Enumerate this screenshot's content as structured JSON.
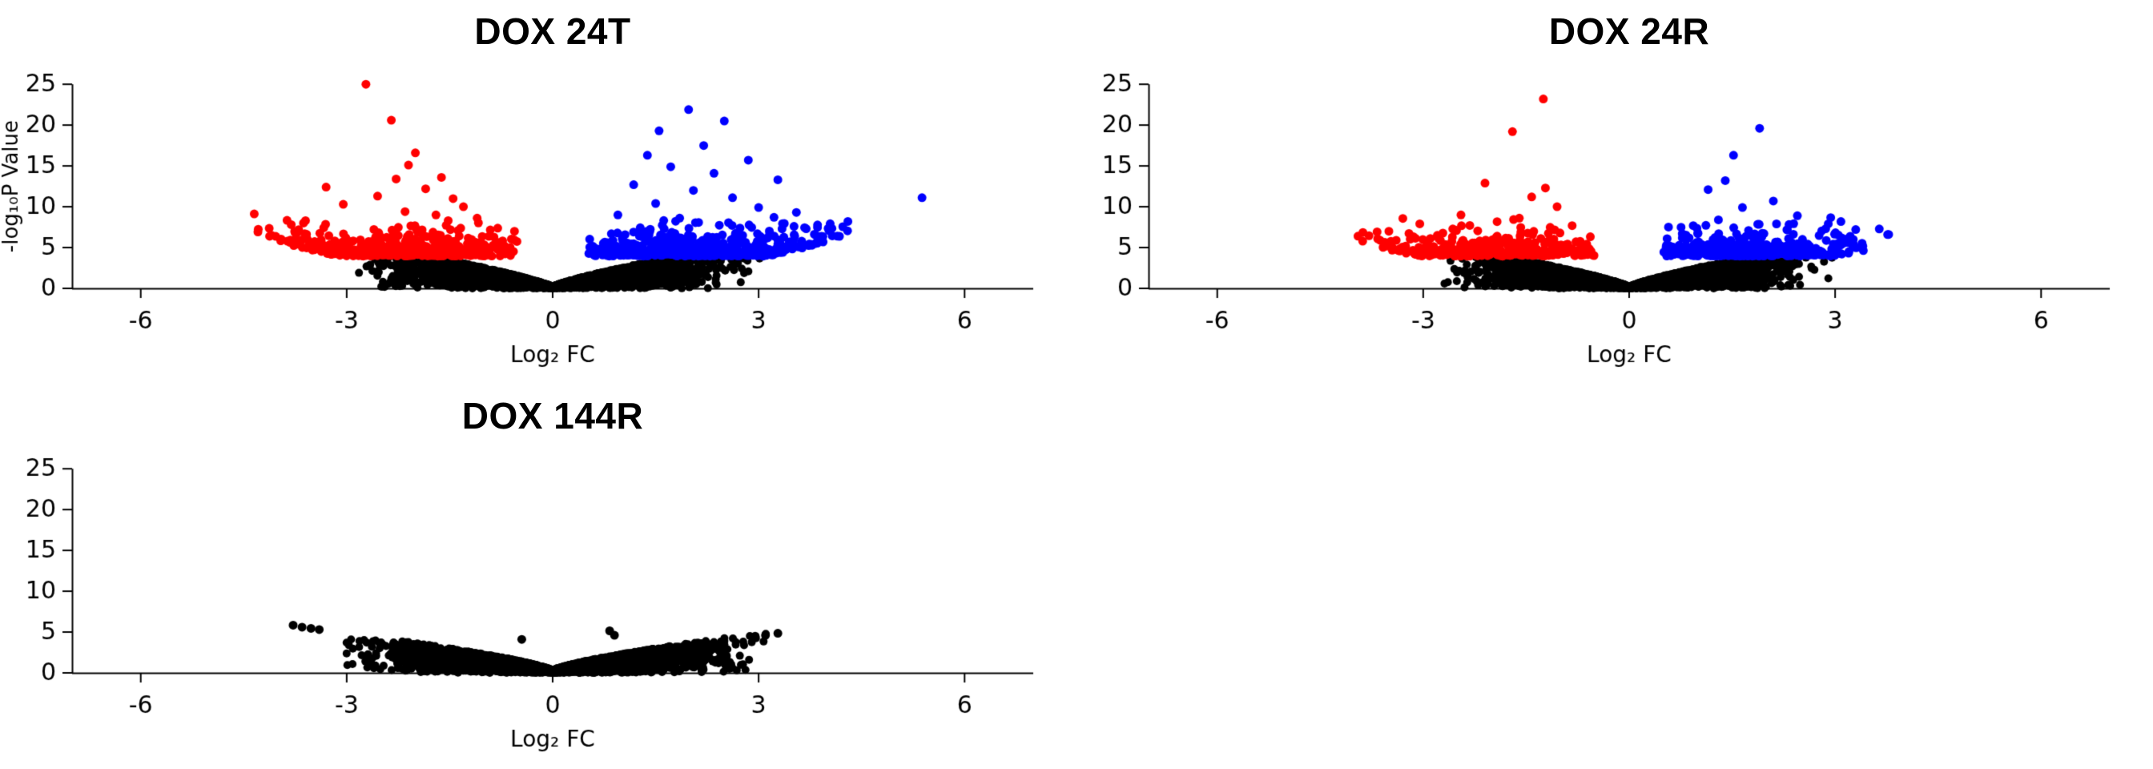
{
  "page": {
    "background": "#FFFFFF"
  },
  "chart_data": [
    {
      "type": "scatter",
      "subtype": "volcano",
      "title": "DOX 24T",
      "xlabel": "Log₂ FC",
      "ylabel": "-log₁₀P Value",
      "show_ylabel": true,
      "xlim": [
        -7,
        7
      ],
      "ylim": [
        0,
        26
      ],
      "xticks": [
        -6,
        -3,
        0,
        3,
        6
      ],
      "yticks": [
        0,
        5,
        10,
        15,
        20,
        25
      ],
      "grid": false,
      "legend": "none",
      "significance_threshold_y": 3.9,
      "seed": 101,
      "series": [
        {
          "name": "non-significant",
          "color": "#000000",
          "n": 4200,
          "x_spread": 1.7,
          "x_clip": 3.35,
          "envelope": {
            "base": 0.18,
            "coef": 2.35,
            "pow": 0.8,
            "cap": 3.85
          },
          "outliers": []
        },
        {
          "name": "down-regulated-significant",
          "color": "#FF0000",
          "side": -1,
          "n": 520,
          "x_min": 0.5,
          "x_scale": 3.95,
          "x_pow": 1.35,
          "x_clip": 4.65,
          "floor": {
            "base": 3.95,
            "coef": 2.0,
            "knee": 3.05,
            "pow": 1.4
          },
          "y_exp": 1.0,
          "outliers": [
            [
              -2.72,
              25.0
            ],
            [
              -2.35,
              20.6
            ],
            [
              -2.0,
              16.6
            ],
            [
              -2.1,
              15.1
            ],
            [
              -1.62,
              13.6
            ],
            [
              -2.28,
              13.4
            ],
            [
              -3.3,
              12.4
            ],
            [
              -1.85,
              12.2
            ],
            [
              -2.55,
              11.3
            ],
            [
              -1.45,
              11.0
            ],
            [
              -3.05,
              10.3
            ],
            [
              -1.3,
              10.0
            ],
            [
              -2.15,
              9.4
            ],
            [
              -1.7,
              9.0
            ],
            [
              -3.6,
              8.3
            ],
            [
              -1.1,
              8.6
            ]
          ]
        },
        {
          "name": "up-regulated-significant",
          "color": "#0000FF",
          "side": 1,
          "n": 620,
          "x_min": 0.5,
          "x_scale": 3.95,
          "x_pow": 1.35,
          "x_clip": 4.45,
          "floor": {
            "base": 3.95,
            "coef": 2.0,
            "knee": 3.05,
            "pow": 1.4
          },
          "y_exp": 1.0,
          "outliers": [
            [
              1.98,
              21.9
            ],
            [
              2.5,
              20.5
            ],
            [
              1.55,
              19.3
            ],
            [
              2.2,
              17.5
            ],
            [
              1.38,
              16.3
            ],
            [
              2.85,
              15.7
            ],
            [
              1.72,
              14.9
            ],
            [
              2.35,
              14.1
            ],
            [
              3.28,
              13.3
            ],
            [
              1.18,
              12.7
            ],
            [
              2.05,
              12.0
            ],
            [
              2.62,
              11.1
            ],
            [
              5.38,
              11.1
            ],
            [
              1.5,
              10.4
            ],
            [
              3.0,
              9.9
            ],
            [
              3.55,
              9.3
            ],
            [
              4.3,
              8.2
            ],
            [
              0.95,
              9.0
            ],
            [
              1.85,
              8.6
            ]
          ]
        }
      ]
    },
    {
      "type": "scatter",
      "subtype": "volcano",
      "title": "DOX 24R",
      "xlabel": "Log₂ FC",
      "ylabel": "-log₁₀P Value",
      "show_ylabel": false,
      "xlim": [
        -7,
        7
      ],
      "ylim": [
        0,
        26
      ],
      "xticks": [
        -6,
        -3,
        0,
        3,
        6
      ],
      "yticks": [
        0,
        5,
        10,
        15,
        20,
        25
      ],
      "grid": false,
      "legend": "none",
      "significance_threshold_y": 3.9,
      "seed": 202,
      "series": [
        {
          "name": "non-significant",
          "color": "#000000",
          "n": 4200,
          "x_spread": 1.65,
          "x_clip": 3.3,
          "envelope": {
            "base": 0.18,
            "coef": 2.35,
            "pow": 0.8,
            "cap": 3.85
          },
          "outliers": []
        },
        {
          "name": "down-regulated-significant",
          "color": "#FF0000",
          "side": -1,
          "n": 330,
          "x_min": 0.45,
          "x_scale": 3.55,
          "x_pow": 1.35,
          "x_clip": 4.0,
          "floor": {
            "base": 3.95,
            "coef": 2.0,
            "knee": 3.0,
            "pow": 1.4
          },
          "y_exp": 0.95,
          "outliers": [
            [
              -1.25,
              23.2
            ],
            [
              -1.7,
              19.2
            ],
            [
              -2.1,
              12.9
            ],
            [
              -1.22,
              12.3
            ],
            [
              -1.42,
              11.2
            ],
            [
              -1.05,
              10.0
            ],
            [
              -2.45,
              9.0
            ],
            [
              -1.6,
              8.6
            ],
            [
              -3.05,
              7.9
            ],
            [
              -3.5,
              7.0
            ],
            [
              -3.95,
              6.4
            ]
          ]
        },
        {
          "name": "up-regulated-significant",
          "color": "#0000FF",
          "side": 1,
          "n": 480,
          "x_min": 0.45,
          "x_scale": 3.35,
          "x_pow": 1.35,
          "x_clip": 3.8,
          "floor": {
            "base": 3.95,
            "coef": 2.0,
            "knee": 3.0,
            "pow": 1.4
          },
          "y_exp": 0.95,
          "outliers": [
            [
              1.9,
              19.6
            ],
            [
              1.52,
              16.3
            ],
            [
              1.4,
              13.2
            ],
            [
              1.15,
              12.1
            ],
            [
              2.1,
              10.7
            ],
            [
              1.65,
              9.9
            ],
            [
              2.45,
              8.9
            ],
            [
              1.3,
              8.4
            ],
            [
              2.9,
              7.9
            ],
            [
              3.3,
              7.2
            ],
            [
              3.78,
              6.6
            ]
          ]
        }
      ]
    },
    {
      "type": "scatter",
      "subtype": "volcano",
      "title": "DOX 144R",
      "xlabel": "Log₂ FC",
      "ylabel": "-log₁₀P Value",
      "show_ylabel": false,
      "xlim": [
        -7,
        7
      ],
      "ylim": [
        0,
        26
      ],
      "xticks": [
        -6,
        -3,
        0,
        3,
        6
      ],
      "yticks": [
        0,
        5,
        10,
        15,
        20,
        25
      ],
      "grid": false,
      "legend": "none",
      "significance_threshold_y": null,
      "seed": 303,
      "series": [
        {
          "name": "non-significant",
          "color": "#000000",
          "n": 4000,
          "x_spread": 1.85,
          "x_clip": 3.4,
          "envelope": {
            "base": 0.3,
            "coef": 2.0,
            "pow": 0.75,
            "cap": 6.0
          },
          "outliers": [
            [
              -3.78,
              5.85
            ],
            [
              -3.65,
              5.6
            ],
            [
              -3.52,
              5.45
            ],
            [
              -3.4,
              5.3
            ],
            [
              0.83,
              5.15
            ],
            [
              0.9,
              4.6
            ],
            [
              3.28,
              4.85
            ],
            [
              3.1,
              4.6
            ],
            [
              2.95,
              4.5
            ],
            [
              -0.45,
              4.1
            ]
          ]
        }
      ]
    }
  ]
}
